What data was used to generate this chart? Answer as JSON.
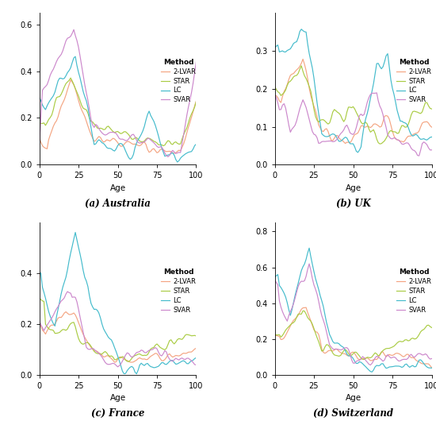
{
  "subplots": [
    {
      "label": "(a) Australia",
      "ylim": [
        0.0,
        0.65
      ],
      "yticks": [
        0.0,
        0.2,
        0.4,
        0.6
      ]
    },
    {
      "label": "(b) UK",
      "ylim": [
        0.0,
        0.4
      ],
      "yticks": [
        0.0,
        0.1,
        0.2,
        0.3
      ]
    },
    {
      "label": "(c) France",
      "ylim": [
        0.0,
        0.6
      ],
      "yticks": [
        0.0,
        0.2,
        0.4
      ]
    },
    {
      "label": "(d) Switzerland",
      "ylim": [
        0.0,
        0.85
      ],
      "yticks": [
        0.0,
        0.2,
        0.4,
        0.6,
        0.8
      ]
    }
  ],
  "methods": [
    "2-LVAR",
    "STAR",
    "LC",
    "SVAR"
  ],
  "colors": [
    "#F4A582",
    "#AACC44",
    "#44BBCC",
    "#CC88CC"
  ],
  "xlabel": "Age",
  "age_min": 0,
  "age_max": 100,
  "xticks": [
    0,
    25,
    50,
    75,
    100
  ],
  "legend_title": "Method",
  "linewidth": 0.85,
  "background_color": "#ffffff"
}
